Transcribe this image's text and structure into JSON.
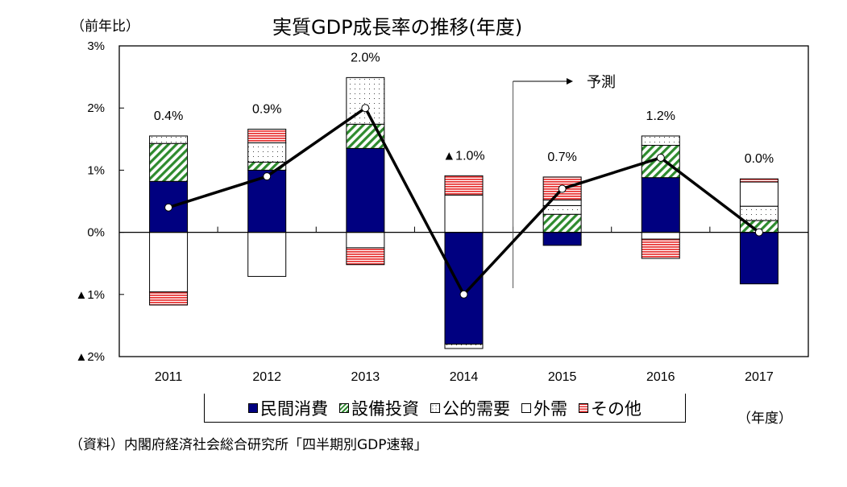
{
  "chart_data": {
    "type": "bar",
    "subtype": "stacked-bar-with-line",
    "title": "実質GDP成長率の推移(年度)",
    "ylabel": "（前年比）",
    "xlabel": "（年度）",
    "ylim": [
      -2,
      3
    ],
    "ytick_labels": [
      "▲2%",
      "▲1%",
      "0%",
      "1%",
      "2%",
      "3%"
    ],
    "ytick_values": [
      -2,
      -1,
      0,
      1,
      2,
      3
    ],
    "categories": [
      "2011",
      "2012",
      "2013",
      "2014",
      "2015",
      "2016",
      "2017"
    ],
    "series": [
      {
        "name": "民間消費",
        "color": "#000080",
        "pattern": "solid",
        "values": [
          0.82,
          1.0,
          1.35,
          -1.8,
          -0.21,
          0.88,
          -0.83
        ]
      },
      {
        "name": "設備投資",
        "color": "#2e8b2e",
        "pattern": "diagonal",
        "values": [
          0.61,
          0.13,
          0.39,
          0,
          0.29,
          0.52,
          0.19
        ]
      },
      {
        "name": "公的需要",
        "color": "#888888",
        "pattern": "dots",
        "values": [
          0.12,
          0.31,
          0.75,
          -0.07,
          0.14,
          0.15,
          0.23
        ]
      },
      {
        "name": "外需",
        "color": "#ffffff",
        "pattern": "white",
        "values": [
          -0.96,
          -0.71,
          -0.25,
          0.6,
          0.09,
          -0.11,
          0.39
        ]
      },
      {
        "name": "その他",
        "color": "#e83030",
        "pattern": "horizontal",
        "values": [
          -0.21,
          0.22,
          -0.27,
          0.31,
          0.37,
          -0.31,
          0.05
        ]
      }
    ],
    "line": {
      "values": [
        0.4,
        0.9,
        2.0,
        -1.0,
        0.7,
        1.2,
        0.0
      ],
      "color": "#000000"
    },
    "data_labels": [
      "0.4%",
      "0.9%",
      "2.0%",
      "▲1.0%",
      "0.7%",
      "1.2%",
      "0.0%"
    ],
    "forecast_start": "2015",
    "forecast_label": "予測",
    "grid": false,
    "legend_position": "bottom"
  },
  "source": "（資料）内閣府経済社会総合研究所「四半期別GDP速報」"
}
